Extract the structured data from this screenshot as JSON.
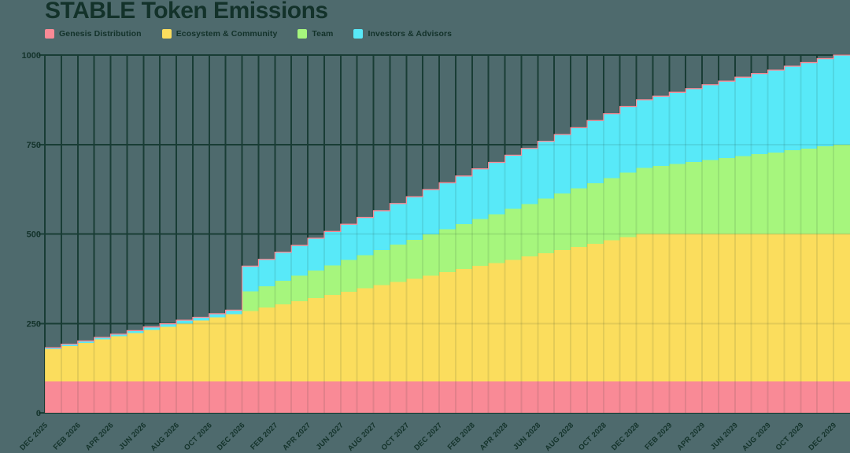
{
  "header": {
    "title": "STABLE Token Emissions"
  },
  "colors": {
    "background": "#4e6a6d",
    "gridline": "#1a3f37",
    "text_dark": "#14332b",
    "top_stroke": "#f98a96"
  },
  "axes": {
    "y_tick_labels": [
      "0",
      "250",
      "500",
      "750",
      "1000"
    ],
    "x_tick_labels": [
      "DEC 2025",
      "FEB 2026",
      "APR 2026",
      "JUN 2026",
      "AUG 2026",
      "OCT 2026",
      "DEC 2026",
      "FEB 2027",
      "APR 2027",
      "JUN 2027",
      "AUG 2027",
      "OCT 2027",
      "DEC 2027",
      "FEB 2028",
      "APR 2028",
      "JUN 2028",
      "AUG 2028",
      "OCT 2028",
      "DEC 2028",
      "FEB 2029",
      "APR 2029",
      "JUN 2029",
      "AUG 2029",
      "OCT 2029",
      "DEC 2029"
    ]
  },
  "chart_data": {
    "type": "area",
    "stacked": true,
    "step": true,
    "title": "STABLE Token Emissions",
    "ylim": [
      0,
      1000
    ],
    "yticks": [
      0,
      250,
      500,
      750,
      1000
    ],
    "grid": true,
    "legend_position": "top-left",
    "xtick_every_months": 2,
    "x_months": [
      "Dec 2025",
      "Jan 2026",
      "Feb 2026",
      "Mar 2026",
      "Apr 2026",
      "May 2026",
      "Jun 2026",
      "Jul 2026",
      "Aug 2026",
      "Sep 2026",
      "Oct 2026",
      "Nov 2026",
      "Dec 2026",
      "Jan 2027",
      "Feb 2027",
      "Mar 2027",
      "Apr 2027",
      "May 2027",
      "Jun 2027",
      "Jul 2027",
      "Aug 2027",
      "Sep 2027",
      "Oct 2027",
      "Nov 2027",
      "Dec 2027",
      "Jan 2028",
      "Feb 2028",
      "Mar 2028",
      "Apr 2028",
      "May 2028",
      "Jun 2028",
      "Jul 2028",
      "Aug 2028",
      "Sep 2028",
      "Oct 2028",
      "Nov 2028",
      "Dec 2028",
      "Jan 2029",
      "Feb 2029",
      "Mar 2029",
      "Apr 2029",
      "May 2029",
      "Jun 2029",
      "Jul 2029",
      "Aug 2029",
      "Sep 2029",
      "Oct 2029",
      "Nov 2029",
      "Dec 2029"
    ],
    "series": [
      {
        "name": "Genesis Distribution",
        "color": "#f98a96",
        "values": [
          88,
          88,
          88,
          88,
          88,
          88,
          88,
          88,
          88,
          88,
          88,
          88,
          88,
          88,
          88,
          88,
          88,
          88,
          88,
          88,
          88,
          88,
          88,
          88,
          88,
          88,
          88,
          88,
          88,
          88,
          88,
          88,
          88,
          88,
          88,
          88,
          88,
          88,
          88,
          88,
          88,
          88,
          88,
          88,
          88,
          88,
          88,
          88,
          88
        ]
      },
      {
        "name": "Ecosystem & Community",
        "color": "#fbdd5d",
        "values": [
          90,
          99,
          108,
          117,
          126,
          135,
          144,
          153,
          162,
          170,
          179,
          188,
          197,
          206,
          215,
          224,
          233,
          242,
          251,
          260,
          269,
          278,
          287,
          296,
          305,
          314,
          323,
          331,
          340,
          349,
          358,
          367,
          376,
          385,
          394,
          403,
          412,
          412,
          412,
          412,
          412,
          412,
          412,
          412,
          412,
          412,
          412,
          412,
          412
        ]
      },
      {
        "name": "Team",
        "color": "#a6f67d",
        "values": [
          0,
          0,
          0,
          0,
          0,
          0,
          0,
          0,
          0,
          0,
          0,
          0,
          55,
          60,
          66,
          71,
          77,
          82,
          88,
          93,
          98,
          104,
          109,
          115,
          120,
          125,
          131,
          136,
          142,
          147,
          153,
          158,
          163,
          169,
          174,
          180,
          185,
          190,
          196,
          201,
          207,
          212,
          218,
          223,
          228,
          234,
          239,
          245,
          250
        ]
      },
      {
        "name": "Investors & Advisors",
        "color": "#58e9f8",
        "values": [
          4,
          5,
          5,
          6,
          6,
          7,
          8,
          8,
          9,
          9,
          10,
          11,
          70,
          75,
          80,
          85,
          90,
          95,
          100,
          105,
          110,
          115,
          120,
          125,
          130,
          135,
          140,
          145,
          150,
          155,
          160,
          165,
          170,
          175,
          180,
          185,
          190,
          195,
          200,
          205,
          210,
          215,
          220,
          225,
          230,
          235,
          240,
          245,
          250
        ]
      }
    ]
  }
}
